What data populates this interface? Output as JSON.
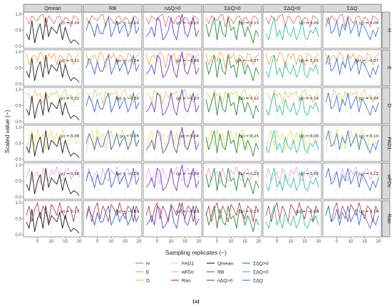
{
  "chart_data": {
    "type": "line",
    "ylabel": "Scaled value (−)",
    "xlabel": "Sampling replicates (−)",
    "caption": "(a)",
    "x_ticks": [
      5,
      10,
      15,
      20
    ],
    "y_ticks": [
      "0.0",
      "0.5",
      "1.0"
    ],
    "xlim": [
      1,
      20
    ],
    "ylim": [
      0,
      1
    ],
    "panel_columns": [
      "Qmean",
      "RB",
      "nΔQ>0",
      "ΣΔQ>0",
      "ΣΔQ<0",
      "ΣΔQ"
    ],
    "panel_rows": [
      "H",
      "E",
      "D",
      "FAD1",
      "wFDc",
      "Rao"
    ],
    "correlations": [
      [
        "(ρ) = 0.29",
        "(ρ) = −0.10",
        "(ρ) = −0.15",
        "(ρ) = 0.13",
        "(ρ) = 0.09",
        "(ρ) = 0.08"
      ],
      [
        "(ρ) = 0.11",
        "(ρ) = −0.14",
        "(ρ) = −0.38",
        "(ρ) = −0.07",
        "(ρ) = 0.15",
        "(ρ) = −0.07"
      ],
      [
        "(ρ) = 0.22",
        "(ρ) = −0.00",
        "(ρ) = −0.20",
        "(ρ) = 0.12",
        "(ρ) = 0.14",
        "(ρ) = 0.04"
      ],
      [
        "(ρ) = 0.38",
        "(ρ) = 0.05",
        "(ρ) = 0.04",
        "(ρ) = 0.25",
        "(ρ) = 0.06",
        "(ρ) = 0.10"
      ],
      [
        "(ρ) = 0.36",
        "(ρ) = −0.00",
        "(ρ) = −0.00",
        "(ρ) = 0.23",
        "(ρ) = 0.05",
        "(ρ) = 0.12"
      ],
      [
        "(ρ) = 0.17",
        "(ρ) = −0.01",
        "(ρ) = −0.03",
        "(ρ) = 0.17",
        "(ρ) = −0.08",
        "(ρ) = 0.16"
      ]
    ],
    "row_series": [
      {
        "name": "H",
        "color": "#e06a6a",
        "values": [
          0.9,
          0.7,
          0.95,
          0.85,
          0.8,
          0.95,
          1.0,
          0.6,
          0.95,
          0.85,
          0.7,
          0.9,
          0.95,
          0.75,
          0.9,
          0.85,
          0.6,
          0.95,
          0.9,
          0.8
        ]
      },
      {
        "name": "E",
        "color": "#f0a050",
        "values": [
          0.95,
          0.6,
          0.85,
          0.9,
          0.7,
          1.0,
          0.9,
          0.5,
          0.95,
          0.8,
          0.95,
          0.6,
          0.9,
          0.85,
          0.55,
          0.95,
          0.9,
          0.6,
          0.85,
          0.95
        ]
      },
      {
        "name": "D",
        "color": "#e8c060",
        "values": [
          0.9,
          0.85,
          0.6,
          1.0,
          0.8,
          0.9,
          0.55,
          0.95,
          0.75,
          0.9,
          0.85,
          0.95,
          0.6,
          0.9,
          1.0,
          0.7,
          0.85,
          0.6,
          0.8,
          0.9
        ]
      },
      {
        "name": "FAD1",
        "color": "#e0e070",
        "values": [
          0.2,
          0.7,
          0.9,
          0.4,
          0.95,
          0.6,
          0.8,
          0.3,
          0.75,
          0.9,
          0.5,
          0.85,
          0.4,
          0.95,
          0.6,
          0.3,
          0.8,
          0.7,
          0.5,
          0.6
        ]
      },
      {
        "name": "wFDc",
        "color": "#e8a0e0",
        "values": [
          0.6,
          0.9,
          0.5,
          0.7,
          0.8,
          0.4,
          0.9,
          0.6,
          0.5,
          0.85,
          0.7,
          0.95,
          0.6,
          0.5,
          0.8,
          0.9,
          0.55,
          0.7,
          0.85,
          0.6
        ]
      },
      {
        "name": "Rao",
        "color": "#b03040",
        "values": [
          0.6,
          0.9,
          0.4,
          0.8,
          1.0,
          0.5,
          0.9,
          0.7,
          0.4,
          0.95,
          0.8,
          0.6,
          1.0,
          0.7,
          0.5,
          0.9,
          0.8,
          0.4,
          0.9,
          0.7
        ]
      }
    ],
    "column_series": [
      {
        "name": "Qmean",
        "color": "#1a1a1a",
        "values": [
          0.4,
          0.2,
          0.8,
          0.1,
          0.5,
          0.7,
          0.2,
          0.9,
          0.3,
          0.6,
          0.5,
          0.4,
          0.7,
          0.2,
          0.6,
          0.3,
          0.1,
          0.2,
          0.15,
          0.05
        ]
      },
      {
        "name": "RB",
        "color": "#3a66c8",
        "values": [
          0.5,
          0.8,
          0.6,
          0.3,
          0.7,
          0.4,
          0.4,
          0.7,
          0.9,
          0.3,
          0.5,
          0.8,
          0.4,
          0.6,
          0.7,
          0.3,
          0.5,
          0.9,
          0.4,
          0.6
        ]
      },
      {
        "name": "nΔQ>0",
        "color": "#6a3cc0",
        "values": [
          0.3,
          0.4,
          0.6,
          0.3,
          0.9,
          0.8,
          0.2,
          0.3,
          0.5,
          0.9,
          0.4,
          0.2,
          0.7,
          1.0,
          0.4,
          0.3,
          0.6,
          0.9,
          0.3,
          0.5
        ]
      },
      {
        "name": "ΣΔQ>0",
        "color": "#2a8a3a",
        "values": [
          0.7,
          0.3,
          0.6,
          0.9,
          0.2,
          0.8,
          0.4,
          0.3,
          0.9,
          0.5,
          0.6,
          0.2,
          0.8,
          0.7,
          0.3,
          0.6,
          0.4,
          0.1,
          0.5,
          0.3
        ]
      },
      {
        "name": "ΣΔQ<0",
        "color": "#38c0a0",
        "values": [
          0.4,
          0.2,
          0.6,
          0.9,
          0.3,
          0.5,
          0.2,
          0.7,
          0.4,
          0.3,
          0.6,
          0.2,
          0.4,
          0.8,
          0.3,
          0.2,
          0.5,
          0.4,
          0.6,
          0.3
        ]
      },
      {
        "name": "ΣΔQ",
        "color": "#3a78c8",
        "values": [
          0.6,
          0.9,
          0.4,
          0.5,
          0.8,
          0.3,
          0.7,
          0.5,
          0.9,
          0.4,
          0.6,
          0.8,
          0.3,
          0.7,
          0.6,
          0.4,
          0.2,
          0.5,
          0.3,
          0.6
        ]
      }
    ],
    "legend": [
      {
        "label": "H",
        "color": "#e06a6a"
      },
      {
        "label": "FAD1",
        "color": "#e0e070"
      },
      {
        "label": "Qmean",
        "color": "#1a1a1a"
      },
      {
        "label": "ΣΔQ>0",
        "color": "#2a8a3a"
      },
      {
        "label": "E",
        "color": "#f0a050"
      },
      {
        "label": "wFDc",
        "color": "#e8a0e0"
      },
      {
        "label": "RB",
        "color": "#3a66c8"
      },
      {
        "label": "ΣΔQ<0",
        "color": "#38c0a0"
      },
      {
        "label": "D",
        "color": "#e8c060"
      },
      {
        "label": "Rao",
        "color": "#b03040"
      },
      {
        "label": "nΔQ>0",
        "color": "#6a3cc0"
      },
      {
        "label": "ΣΔQ",
        "color": "#3a78c8"
      }
    ],
    "grid": true,
    "legend_placement": "bottom"
  }
}
